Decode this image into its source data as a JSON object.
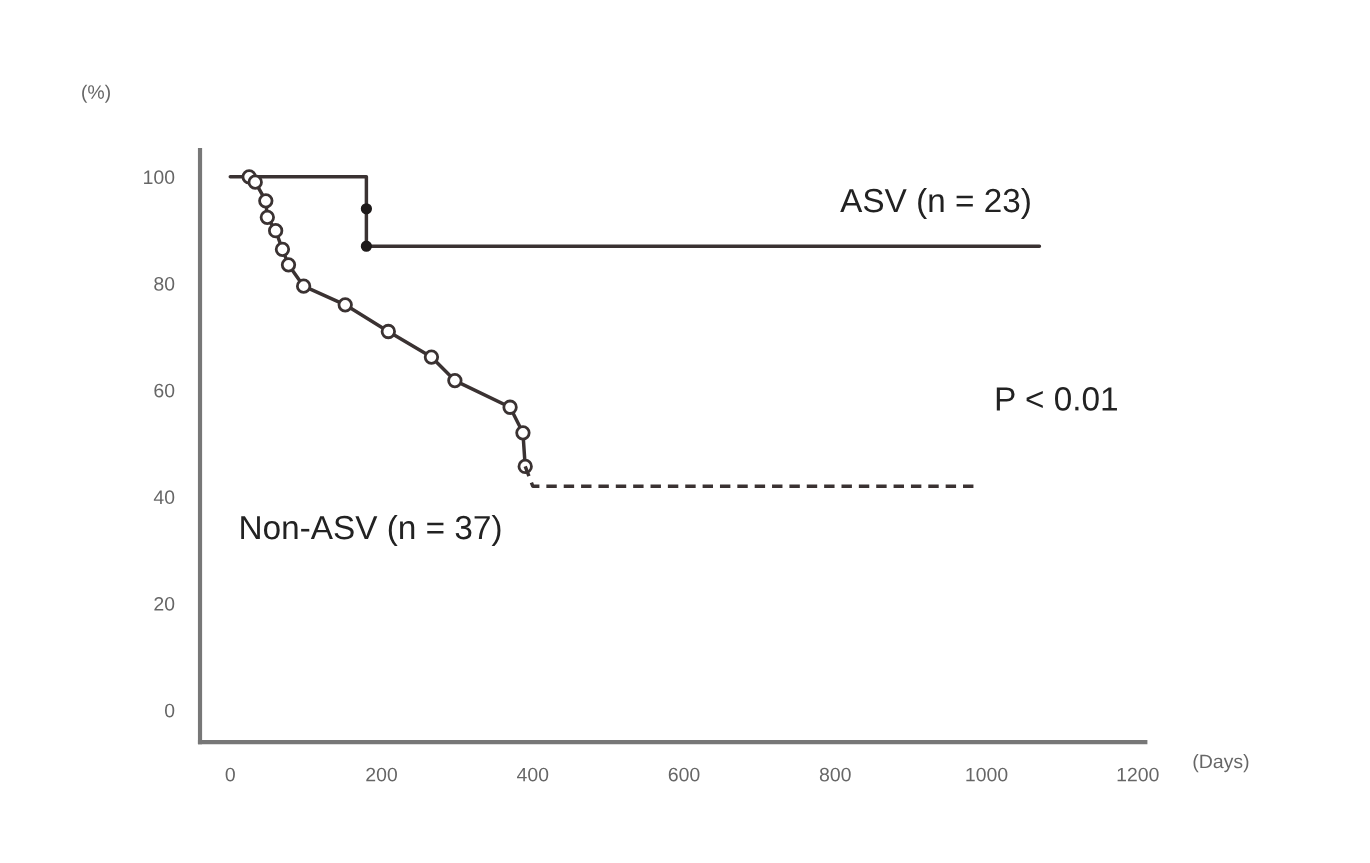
{
  "chart_data": {
    "type": "line",
    "ylabel": "(%)",
    "xlabel": "(Days)",
    "xlim": [
      -40,
      1210
    ],
    "ylim": [
      -6,
      105
    ],
    "xticks": [
      0,
      200,
      400,
      600,
      800,
      1000,
      1200
    ],
    "yticks": [
      0,
      20,
      40,
      60,
      80,
      100
    ],
    "grid": false,
    "legend": false,
    "series": [
      {
        "name": "ASV (n = 23)",
        "color": "#3a3232",
        "line_style": "solid",
        "marker": "none",
        "x": [
          0,
          180,
          180,
          180,
          1070
        ],
        "values": [
          100,
          100,
          94,
          87,
          87
        ]
      },
      {
        "type": "scatter",
        "color": "#1e1a1a",
        "marker": "circle",
        "x": [
          180,
          180
        ],
        "values": [
          94,
          87
        ]
      },
      {
        "name": "Non-ASV (n = 37)",
        "color": "#3a3232",
        "line_style": "solid",
        "marker": "circle",
        "x": [
          25,
          33,
          47,
          49,
          60,
          69,
          77,
          97,
          152,
          209,
          266,
          297,
          370,
          387,
          390
        ],
        "values": [
          100,
          99,
          95.5,
          92.4,
          89.9,
          86.4,
          83.5,
          79.5,
          76,
          71,
          66.2,
          61.8,
          56.8,
          52,
          45.7
        ]
      },
      {
        "color": "#3a3232",
        "line_style": "dashed",
        "marker": "none",
        "x": [
          390,
          400,
          985
        ],
        "values": [
          45.7,
          42,
          42
        ]
      }
    ],
    "annotations": [
      "P < 0.01"
    ]
  }
}
